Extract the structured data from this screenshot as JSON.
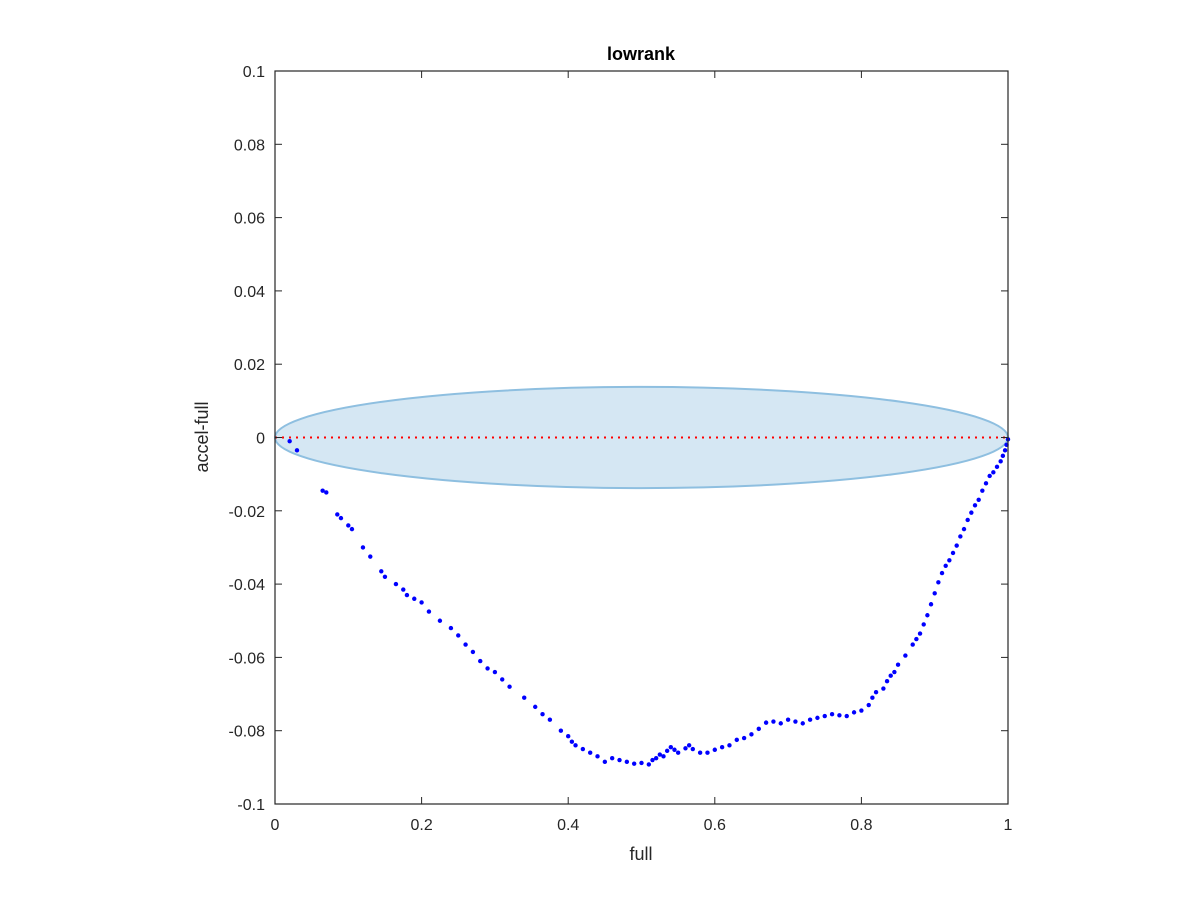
{
  "chart_data": {
    "type": "scatter",
    "title": "lowrank",
    "xlabel": "full",
    "ylabel": "accel-full",
    "xlim": [
      0,
      1
    ],
    "ylim": [
      -0.1,
      0.1
    ],
    "xticks": [
      0,
      0.2,
      0.4,
      0.6,
      0.8,
      1
    ],
    "xtick_labels": [
      "0",
      "0.2",
      "0.4",
      "0.6",
      "0.8",
      "1"
    ],
    "yticks": [
      0.1,
      0.08,
      0.06,
      0.04,
      0.02,
      0,
      -0.02,
      -0.04,
      -0.06,
      -0.08,
      -0.1
    ],
    "ytick_labels": [
      "0.1",
      "0.08",
      "0.06",
      "0.04",
      "0.02",
      "0",
      "-0.02",
      "-0.04",
      "-0.06",
      "-0.08",
      "-0.1"
    ],
    "grid": false,
    "reference_line": {
      "y": 0,
      "x_range": [
        0,
        1
      ],
      "style": "dotted",
      "color": "#ff0000"
    },
    "ellipse": {
      "center": [
        0.5,
        0
      ],
      "x_radius": 0.5,
      "y_radius": 0.0138,
      "fill": "#d5e7f3",
      "stroke": "#8ebfe0"
    },
    "series": [
      {
        "color": "#0000ff",
        "points": [
          [
            0.02,
            -0.001
          ],
          [
            0.03,
            -0.0035
          ],
          [
            0.065,
            -0.0145
          ],
          [
            0.07,
            -0.015
          ],
          [
            0.085,
            -0.021
          ],
          [
            0.09,
            -0.022
          ],
          [
            0.1,
            -0.024
          ],
          [
            0.105,
            -0.025
          ],
          [
            0.12,
            -0.03
          ],
          [
            0.13,
            -0.0325
          ],
          [
            0.145,
            -0.0365
          ],
          [
            0.15,
            -0.038
          ],
          [
            0.165,
            -0.04
          ],
          [
            0.175,
            -0.0415
          ],
          [
            0.18,
            -0.043
          ],
          [
            0.19,
            -0.044
          ],
          [
            0.2,
            -0.045
          ],
          [
            0.21,
            -0.0475
          ],
          [
            0.225,
            -0.05
          ],
          [
            0.24,
            -0.052
          ],
          [
            0.25,
            -0.054
          ],
          [
            0.26,
            -0.0565
          ],
          [
            0.27,
            -0.0585
          ],
          [
            0.28,
            -0.061
          ],
          [
            0.29,
            -0.063
          ],
          [
            0.3,
            -0.064
          ],
          [
            0.31,
            -0.066
          ],
          [
            0.32,
            -0.068
          ],
          [
            0.34,
            -0.071
          ],
          [
            0.355,
            -0.0735
          ],
          [
            0.365,
            -0.0755
          ],
          [
            0.375,
            -0.077
          ],
          [
            0.39,
            -0.08
          ],
          [
            0.4,
            -0.0815
          ],
          [
            0.405,
            -0.083
          ],
          [
            0.41,
            -0.084
          ],
          [
            0.42,
            -0.085
          ],
          [
            0.43,
            -0.086
          ],
          [
            0.44,
            -0.087
          ],
          [
            0.45,
            -0.0885
          ],
          [
            0.46,
            -0.0875
          ],
          [
            0.47,
            -0.088
          ],
          [
            0.48,
            -0.0885
          ],
          [
            0.49,
            -0.089
          ],
          [
            0.5,
            -0.0888
          ],
          [
            0.51,
            -0.0892
          ],
          [
            0.515,
            -0.088
          ],
          [
            0.52,
            -0.0875
          ],
          [
            0.525,
            -0.0865
          ],
          [
            0.53,
            -0.087
          ],
          [
            0.535,
            -0.0855
          ],
          [
            0.54,
            -0.0845
          ],
          [
            0.545,
            -0.0852
          ],
          [
            0.55,
            -0.086
          ],
          [
            0.56,
            -0.0848
          ],
          [
            0.565,
            -0.084
          ],
          [
            0.57,
            -0.085
          ],
          [
            0.58,
            -0.086
          ],
          [
            0.59,
            -0.086
          ],
          [
            0.6,
            -0.0852
          ],
          [
            0.61,
            -0.0845
          ],
          [
            0.62,
            -0.084
          ],
          [
            0.63,
            -0.0825
          ],
          [
            0.64,
            -0.082
          ],
          [
            0.65,
            -0.081
          ],
          [
            0.66,
            -0.0795
          ],
          [
            0.67,
            -0.0778
          ],
          [
            0.68,
            -0.0775
          ],
          [
            0.69,
            -0.078
          ],
          [
            0.7,
            -0.077
          ],
          [
            0.71,
            -0.0775
          ],
          [
            0.72,
            -0.078
          ],
          [
            0.73,
            -0.077
          ],
          [
            0.74,
            -0.0765
          ],
          [
            0.75,
            -0.076
          ],
          [
            0.76,
            -0.0755
          ],
          [
            0.77,
            -0.0758
          ],
          [
            0.78,
            -0.076
          ],
          [
            0.79,
            -0.075
          ],
          [
            0.8,
            -0.0745
          ],
          [
            0.81,
            -0.073
          ],
          [
            0.815,
            -0.071
          ],
          [
            0.82,
            -0.0695
          ],
          [
            0.83,
            -0.0685
          ],
          [
            0.835,
            -0.0665
          ],
          [
            0.84,
            -0.065
          ],
          [
            0.845,
            -0.064
          ],
          [
            0.85,
            -0.062
          ],
          [
            0.86,
            -0.0595
          ],
          [
            0.87,
            -0.0565
          ],
          [
            0.875,
            -0.055
          ],
          [
            0.88,
            -0.0535
          ],
          [
            0.885,
            -0.051
          ],
          [
            0.89,
            -0.0485
          ],
          [
            0.895,
            -0.0455
          ],
          [
            0.9,
            -0.0425
          ],
          [
            0.905,
            -0.0395
          ],
          [
            0.91,
            -0.037
          ],
          [
            0.915,
            -0.035
          ],
          [
            0.92,
            -0.0335
          ],
          [
            0.925,
            -0.0315
          ],
          [
            0.93,
            -0.0295
          ],
          [
            0.935,
            -0.027
          ],
          [
            0.94,
            -0.025
          ],
          [
            0.945,
            -0.0225
          ],
          [
            0.95,
            -0.0205
          ],
          [
            0.955,
            -0.0185
          ],
          [
            0.96,
            -0.017
          ],
          [
            0.965,
            -0.0145
          ],
          [
            0.97,
            -0.0125
          ],
          [
            0.975,
            -0.0105
          ],
          [
            0.98,
            -0.0095
          ],
          [
            0.985,
            -0.008
          ],
          [
            0.99,
            -0.0065
          ],
          [
            0.993,
            -0.005
          ],
          [
            0.996,
            -0.0035
          ],
          [
            0.998,
            -0.002
          ],
          [
            1.0,
            -0.0005
          ]
        ]
      }
    ]
  }
}
